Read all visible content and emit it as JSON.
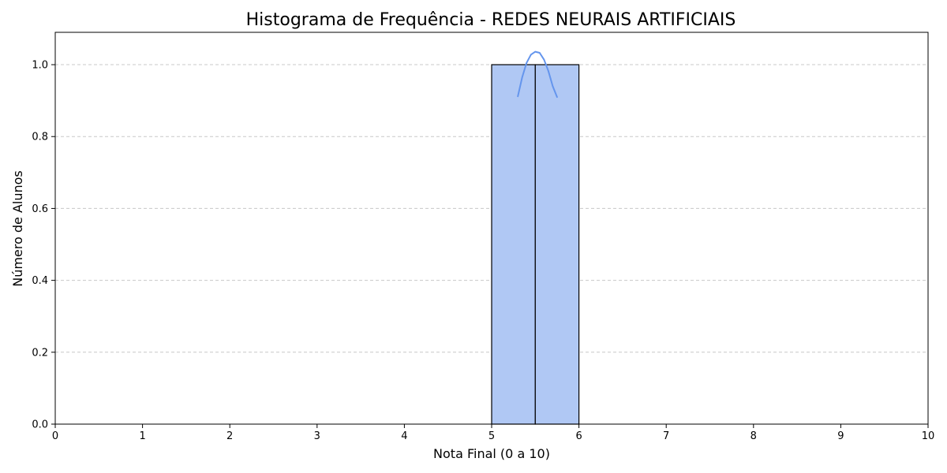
{
  "chart_data": {
    "type": "bar",
    "title": "Histograma de Frequência - REDES NEURAIS ARTIFICIAIS",
    "xlabel": "Nota Final (0 a 10)",
    "ylabel": "Número de Alunos",
    "xlim": [
      0,
      10
    ],
    "ylim": [
      0,
      1.09
    ],
    "xticks": [
      0,
      1,
      2,
      3,
      4,
      5,
      6,
      7,
      8,
      9,
      10
    ],
    "yticks": [
      0.0,
      0.2,
      0.4,
      0.6,
      0.8,
      1.0
    ],
    "ytick_labels": [
      "0.0",
      "0.2",
      "0.4",
      "0.6",
      "0.8",
      "1.0"
    ],
    "grid": "y-dashed",
    "bins": [
      {
        "x0": 5.0,
        "x1": 5.5,
        "count": 1
      },
      {
        "x0": 5.5,
        "x1": 6.0,
        "count": 1
      }
    ],
    "kde": {
      "x": [
        5.3,
        5.35,
        5.4,
        5.45,
        5.5,
        5.55,
        5.6,
        5.65,
        5.7,
        5.75
      ],
      "y": [
        0.912,
        0.965,
        1.005,
        1.028,
        1.036,
        1.033,
        1.014,
        0.982,
        0.94,
        0.91
      ]
    },
    "colors": {
      "bar_fill": "#b0c8f4",
      "bar_edge": "#000000",
      "kde_line": "#6495ed",
      "grid": "#c8c8c8"
    }
  }
}
